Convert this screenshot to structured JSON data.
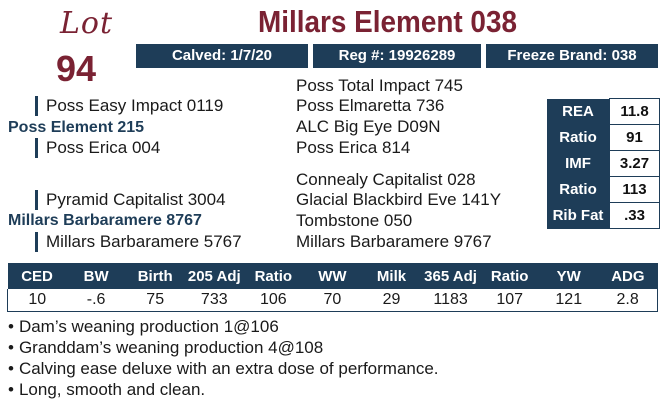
{
  "lot": {
    "word": "Lot",
    "number": "94"
  },
  "title": "Millars Element 038",
  "info": {
    "calved": "Calved: 1/7/20",
    "reg": "Reg #: 19926289",
    "freeze": "Freeze Brand: 038"
  },
  "pedigree": {
    "sire_grandsire": "Poss Easy Impact 0119",
    "sire": "Poss Element 215",
    "sire_granddam": "Poss Erica 004",
    "ggs1": "Poss Total Impact 745",
    "ggd1": "Poss Elmaretta 736",
    "ggs2": "ALC Big Eye D09N",
    "ggd2": "Poss Erica 814",
    "dam_grandsire": "Pyramid Capitalist 3004",
    "dam": "Millars Barbaramere 8767",
    "dam_granddam": "Millars Barbaramere 5767",
    "ggs3": "Connealy Capitalist 028",
    "ggd3": "Glacial Blackbird Eve 141Y",
    "ggs4": "Tombstone 050",
    "ggd4": "Millars Barbaramere 9767"
  },
  "ultrasound": [
    {
      "label": "REA",
      "value": "11.8"
    },
    {
      "label": "Ratio",
      "value": "91"
    },
    {
      "label": "IMF",
      "value": "3.27"
    },
    {
      "label": "Ratio",
      "value": "113"
    },
    {
      "label": "Rib Fat",
      "value": ".33"
    }
  ],
  "epd": {
    "headers": [
      "CED",
      "BW",
      "Birth",
      "205 Adj",
      "Ratio",
      "WW",
      "Milk",
      "365 Adj",
      "Ratio",
      "YW",
      "ADG"
    ],
    "values": [
      "10",
      "-.6",
      "75",
      "733",
      "106",
      "70",
      "29",
      "1183",
      "107",
      "121",
      "2.8"
    ]
  },
  "notes": [
    "Dam’s weaning production 1@106",
    "Granddam’s weaning production 4@108",
    "Calving ease deluxe with an extra dose of performance.",
    "Long, smooth and clean."
  ]
}
